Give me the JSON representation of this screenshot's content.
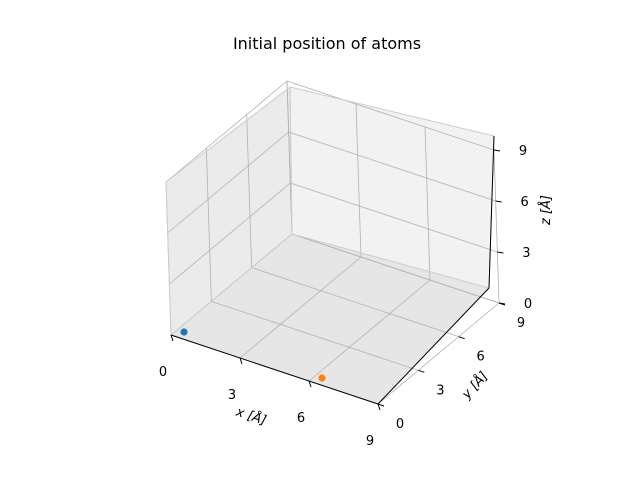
{
  "chart_data": {
    "type": "scatter",
    "projection": "3d",
    "title": "Initial position of atoms",
    "xlabel": "x [Å]",
    "ylabel": "y [Å]",
    "zlabel": "z [Å]",
    "xlim": [
      0,
      9
    ],
    "ylim": [
      0,
      9
    ],
    "zlim": [
      0,
      9
    ],
    "xticks": [
      "0",
      "3",
      "6",
      "9"
    ],
    "yticks": [
      "0",
      "3",
      "6",
      "9"
    ],
    "zticks": [
      "0",
      "3",
      "6",
      "9"
    ],
    "grid": true,
    "points": [
      {
        "x": 0,
        "y": 0,
        "z": 0,
        "color": "#1f77b4"
      },
      {
        "x": 6,
        "y": 0,
        "z": 0,
        "color": "#ff7f0e"
      }
    ]
  }
}
